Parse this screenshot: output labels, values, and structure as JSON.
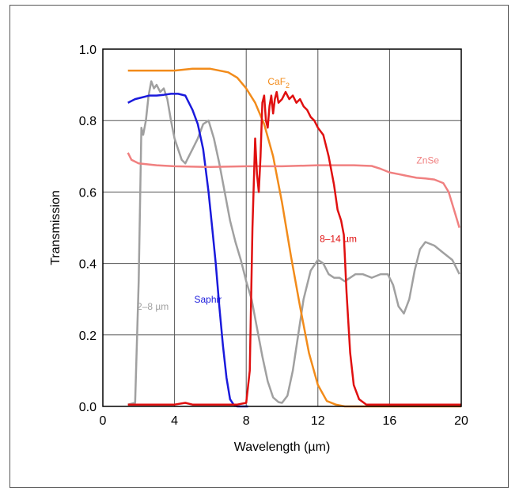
{
  "chart_data": {
    "type": "line",
    "xlabel": "Wavelength (µm)",
    "ylabel": "Transmission",
    "xlim": [
      0,
      20
    ],
    "ylim": [
      0,
      1.0
    ],
    "x_ticks": [
      "0",
      "4",
      "8",
      "12",
      "16",
      "20"
    ],
    "y_ticks": [
      "0.0",
      "0.2",
      "0.4",
      "0.6",
      "0.8",
      "1.0"
    ],
    "grid": true,
    "series": [
      {
        "name": "2–8 µm",
        "color": "#a0a0a0",
        "x": [
          1.4,
          1.8,
          2.0,
          2.15,
          2.25,
          2.4,
          2.55,
          2.7,
          2.85,
          3.0,
          3.2,
          3.4,
          3.6,
          3.8,
          4.0,
          4.2,
          4.4,
          4.6,
          4.8,
          5.0,
          5.3,
          5.6,
          5.9,
          6.2,
          6.5,
          6.8,
          7.1,
          7.4,
          7.7,
          8.0,
          8.3,
          8.6,
          8.9,
          9.2,
          9.5,
          9.8,
          10.0,
          10.3,
          10.6,
          10.9,
          11.2,
          11.6,
          12.0,
          12.3,
          12.6,
          12.9,
          13.2,
          13.5,
          13.8,
          14.1,
          14.5,
          15.0,
          15.5,
          15.9,
          16.2,
          16.5,
          16.8,
          17.1,
          17.4,
          17.7,
          18.0,
          18.5,
          19.0,
          19.5,
          19.9
        ],
        "y": [
          0.005,
          0.01,
          0.35,
          0.78,
          0.76,
          0.8,
          0.87,
          0.91,
          0.89,
          0.9,
          0.88,
          0.89,
          0.86,
          0.8,
          0.75,
          0.72,
          0.69,
          0.68,
          0.7,
          0.72,
          0.75,
          0.79,
          0.8,
          0.75,
          0.68,
          0.6,
          0.52,
          0.46,
          0.41,
          0.35,
          0.3,
          0.22,
          0.14,
          0.07,
          0.025,
          0.012,
          0.01,
          0.03,
          0.1,
          0.2,
          0.3,
          0.38,
          0.41,
          0.4,
          0.37,
          0.36,
          0.36,
          0.35,
          0.36,
          0.37,
          0.37,
          0.36,
          0.37,
          0.37,
          0.34,
          0.28,
          0.26,
          0.3,
          0.38,
          0.44,
          0.46,
          0.45,
          0.43,
          0.41,
          0.37
        ]
      },
      {
        "name": "Saphir",
        "color": "#1a1adc",
        "x": [
          1.4,
          1.8,
          2.2,
          2.6,
          3.0,
          3.4,
          3.8,
          4.2,
          4.6,
          5.0,
          5.3,
          5.6,
          5.9,
          6.1,
          6.3,
          6.5,
          6.7,
          6.9,
          7.1,
          7.3,
          7.5,
          7.8,
          8.1
        ],
        "y": [
          0.85,
          0.86,
          0.865,
          0.87,
          0.87,
          0.872,
          0.875,
          0.875,
          0.87,
          0.83,
          0.79,
          0.72,
          0.6,
          0.5,
          0.4,
          0.28,
          0.17,
          0.08,
          0.02,
          0.005,
          0.0,
          0.0,
          0.0
        ]
      },
      {
        "name": "CaF2",
        "color": "#f28b1a",
        "x": [
          1.4,
          2.0,
          3.0,
          4.0,
          5.0,
          6.0,
          7.0,
          7.5,
          8.0,
          8.5,
          9.0,
          9.5,
          10.0,
          10.5,
          11.0,
          11.5,
          12.0,
          12.5,
          13.0,
          13.5,
          14.0,
          16.0,
          20.0
        ],
        "y": [
          0.94,
          0.94,
          0.94,
          0.94,
          0.945,
          0.945,
          0.935,
          0.92,
          0.89,
          0.85,
          0.79,
          0.7,
          0.57,
          0.42,
          0.28,
          0.15,
          0.06,
          0.015,
          0.005,
          0.0,
          0.0,
          0.0,
          0.0
        ]
      },
      {
        "name": "ZnSe",
        "color": "#f08080",
        "x": [
          1.4,
          1.6,
          2.0,
          3.0,
          4.0,
          6.0,
          8.0,
          10.0,
          12.0,
          14.0,
          15.0,
          15.5,
          16.0,
          16.5,
          17.0,
          17.5,
          18.0,
          18.5,
          19.0,
          19.3,
          19.6,
          19.9
        ],
        "y": [
          0.71,
          0.69,
          0.68,
          0.675,
          0.672,
          0.67,
          0.672,
          0.672,
          0.675,
          0.675,
          0.673,
          0.665,
          0.655,
          0.65,
          0.645,
          0.64,
          0.638,
          0.635,
          0.625,
          0.6,
          0.55,
          0.5
        ],
        "label_text": "ZnSe"
      },
      {
        "name": "8–14 µm",
        "color": "#e01010",
        "x": [
          1.4,
          4.0,
          4.6,
          5.0,
          7.5,
          8.0,
          8.2,
          8.35,
          8.5,
          8.6,
          8.7,
          8.8,
          8.9,
          9.0,
          9.1,
          9.2,
          9.3,
          9.4,
          9.5,
          9.6,
          9.7,
          9.8,
          10.0,
          10.2,
          10.4,
          10.6,
          10.8,
          11.0,
          11.2,
          11.4,
          11.6,
          11.8,
          12.0,
          12.3,
          12.6,
          12.9,
          13.1,
          13.3,
          13.45,
          13.6,
          13.8,
          14.0,
          14.3,
          14.7,
          15.0,
          20.0
        ],
        "y": [
          0.005,
          0.005,
          0.01,
          0.005,
          0.005,
          0.01,
          0.1,
          0.5,
          0.75,
          0.65,
          0.6,
          0.7,
          0.85,
          0.87,
          0.8,
          0.78,
          0.84,
          0.87,
          0.82,
          0.86,
          0.88,
          0.85,
          0.86,
          0.88,
          0.86,
          0.87,
          0.85,
          0.86,
          0.84,
          0.83,
          0.81,
          0.8,
          0.78,
          0.76,
          0.7,
          0.62,
          0.55,
          0.52,
          0.48,
          0.32,
          0.15,
          0.06,
          0.02,
          0.005,
          0.005,
          0.005
        ]
      }
    ],
    "annotations": [
      {
        "text": "CaF",
        "sub": "2",
        "series": "CaF2",
        "color": "#f28b1a"
      },
      {
        "text": "ZnSe",
        "series": "ZnSe",
        "color": "#f08080"
      },
      {
        "text": "8–14 µm",
        "series": "8–14 µm",
        "color": "#e01010"
      },
      {
        "text": "Saphir",
        "series": "Saphir",
        "color": "#1a1adc"
      },
      {
        "text": "2–8 µm",
        "series": "2–8 µm",
        "color": "#a0a0a0"
      }
    ]
  }
}
